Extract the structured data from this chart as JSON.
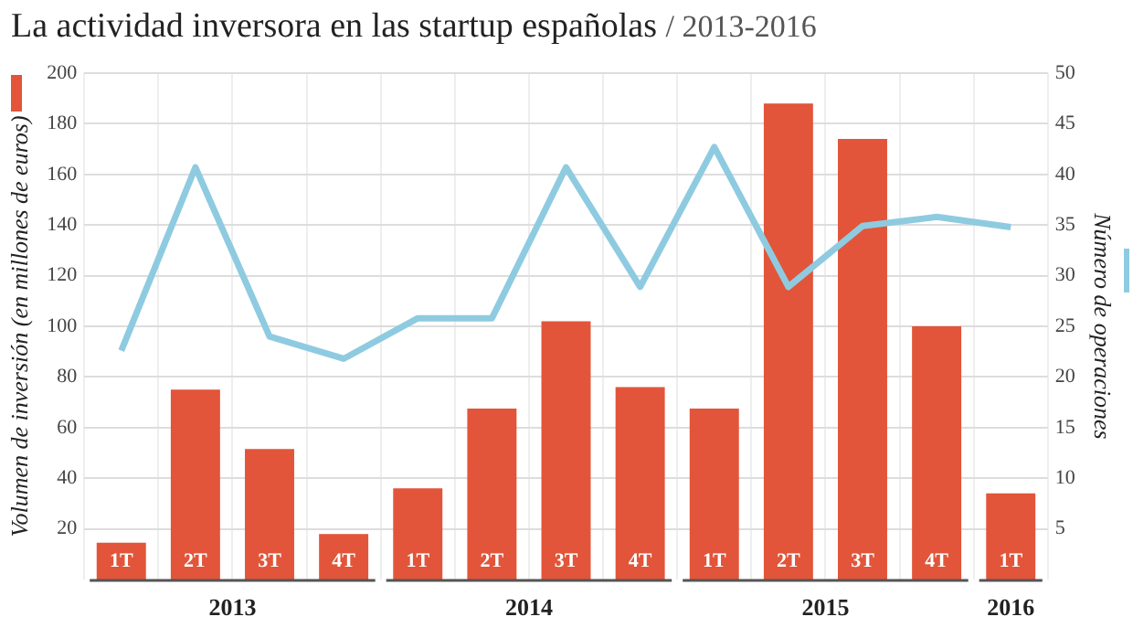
{
  "chart_data": {
    "type": "bar",
    "title": "La actividad inversora en las startup españolas",
    "subtitle": "/ 2013-2016",
    "ylabel": "Volumen de inversión (en millones de euros)",
    "y2label": "Número de operaciones",
    "categories": [
      "1T",
      "2T",
      "3T",
      "4T",
      "1T",
      "2T",
      "3T",
      "4T",
      "1T",
      "2T",
      "3T",
      "4T",
      "1T"
    ],
    "series": [
      {
        "color": "#e2553a",
        "values": [
          14.5,
          75,
          51.5,
          18,
          36,
          67.5,
          102,
          76,
          67.5,
          188,
          174,
          100,
          34
        ]
      },
      {
        "type": "line",
        "axis": "y2",
        "color": "#8ecbe0",
        "values": [
          22.6,
          40.7,
          24,
          21.8,
          25.8,
          25.8,
          40.7,
          28.9,
          42.7,
          28.9,
          34.9,
          35.8,
          34.8
        ]
      }
    ],
    "annotations": [
      "2013",
      "2014",
      "2015",
      "2016"
    ],
    "ylim": [
      0,
      200
    ],
    "yticks": [
      20,
      40,
      60,
      80,
      100,
      120,
      140,
      160,
      180,
      200
    ],
    "y2lim": [
      0,
      50
    ],
    "y2ticks": [
      5,
      10,
      15,
      20,
      25,
      30,
      35,
      40,
      45,
      50
    ],
    "grid": true,
    "legend": false,
    "marker": "none",
    "line_style": "solid"
  }
}
